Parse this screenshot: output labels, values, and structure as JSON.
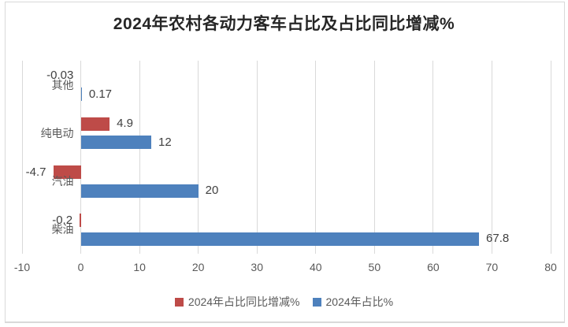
{
  "chart_data": {
    "type": "bar",
    "orientation": "horizontal",
    "title": "2024年农村各动力客车占比及占比同比增减%",
    "categories": [
      "其他",
      "纯电动",
      "汽油",
      "柴油"
    ],
    "series": [
      {
        "name": "2024年占比同比增减%",
        "color": "#be4b48",
        "values": [
          -0.03,
          4.9,
          -4.7,
          -0.2
        ],
        "labels": [
          "-0.03",
          "4.9",
          "-4.7",
          "-0.2"
        ]
      },
      {
        "name": "2024年占比%",
        "color": "#4e81bd",
        "values": [
          0.17,
          12,
          20,
          67.8
        ],
        "labels": [
          "0.17",
          "12",
          "20",
          "67.8"
        ]
      }
    ],
    "x_axis": {
      "min": -10,
      "max": 80,
      "step": 10,
      "tick_labels": [
        "-10",
        "0",
        "10",
        "20",
        "30",
        "40",
        "50",
        "60",
        "70",
        "80"
      ]
    },
    "grid": true,
    "legend_position": "bottom",
    "colors": {
      "grid": "#d9d9d9",
      "border": "#d9d9d9",
      "tick_text": "#595959",
      "category_text": "#595959",
      "data_label_text": "#404040",
      "title_text": "#262626",
      "background": "#ffffff"
    }
  }
}
